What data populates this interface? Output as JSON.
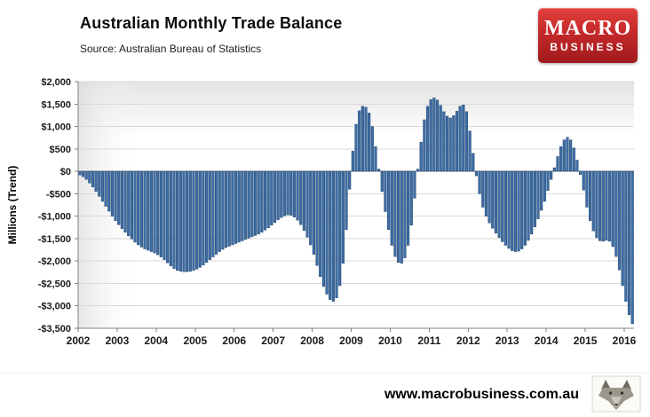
{
  "header": {
    "title": "Australian Monthly Trade Balance",
    "source": "Source: Australian Bureau of Statistics"
  },
  "logo": {
    "line1": "MACRO",
    "line2": "BUSINESS",
    "color_top": "#e2403b",
    "color_bottom": "#a01b1e"
  },
  "footer": {
    "url": "www.macrobusiness.com.au"
  },
  "chart_data": {
    "type": "bar",
    "title": "Australian Monthly Trade Balance",
    "ylabel": "Millions (Trend)",
    "ylim": [
      -3500,
      2000
    ],
    "ytick_step": 500,
    "ytick_labels": [
      "$2,000",
      "$1,500",
      "$1,000",
      "$500",
      "$0",
      "-$500",
      "-$1,000",
      "-$1,500",
      "-$2,000",
      "-$2,500",
      "-$3,000",
      "-$3,500"
    ],
    "x_year_labels": [
      "2002",
      "2003",
      "2004",
      "2005",
      "2006",
      "2007",
      "2008",
      "2009",
      "2010",
      "2011",
      "2012",
      "2013",
      "2014",
      "2015",
      "2016"
    ],
    "frequency": "monthly",
    "start_month": "2002-01",
    "grid": true,
    "legend": "none",
    "bar_color": "#3d6da6",
    "bar_edge": "#1f4369",
    "gridline_color": "#d9d9d9",
    "axis_color": "#808080",
    "values": [
      -80,
      -120,
      -180,
      -260,
      -350,
      -450,
      -560,
      -670,
      -780,
      -890,
      -1000,
      -1100,
      -1190,
      -1280,
      -1360,
      -1440,
      -1510,
      -1580,
      -1640,
      -1690,
      -1730,
      -1760,
      -1790,
      -1820,
      -1860,
      -1910,
      -1970,
      -2040,
      -2110,
      -2170,
      -2210,
      -2230,
      -2240,
      -2240,
      -2230,
      -2210,
      -2180,
      -2140,
      -2090,
      -2030,
      -1970,
      -1910,
      -1850,
      -1790,
      -1740,
      -1700,
      -1670,
      -1640,
      -1610,
      -1580,
      -1550,
      -1520,
      -1490,
      -1460,
      -1430,
      -1400,
      -1360,
      -1310,
      -1260,
      -1200,
      -1140,
      -1080,
      -1030,
      -990,
      -970,
      -980,
      -1020,
      -1090,
      -1190,
      -1320,
      -1470,
      -1640,
      -1850,
      -2100,
      -2350,
      -2570,
      -2740,
      -2860,
      -2900,
      -2820,
      -2550,
      -2050,
      -1300,
      -400,
      450,
      1050,
      1350,
      1450,
      1430,
      1300,
      1000,
      550,
      50,
      -450,
      -900,
      -1300,
      -1650,
      -1900,
      -2030,
      -2050,
      -1930,
      -1650,
      -1200,
      -600,
      50,
      650,
      1150,
      1450,
      1600,
      1640,
      1590,
      1470,
      1330,
      1230,
      1190,
      1240,
      1340,
      1450,
      1480,
      1330,
      900,
      400,
      -100,
      -500,
      -800,
      -1000,
      -1150,
      -1270,
      -1380,
      -1480,
      -1570,
      -1650,
      -1720,
      -1770,
      -1790,
      -1780,
      -1730,
      -1650,
      -1540,
      -1400,
      -1240,
      -1060,
      -870,
      -670,
      -430,
      -180,
      80,
      330,
      550,
      700,
      760,
      700,
      520,
      250,
      -70,
      -420,
      -800,
      -1100,
      -1330,
      -1480,
      -1550,
      -1560,
      -1540,
      -1560,
      -1680,
      -1900,
      -2200,
      -2550,
      -2900,
      -3200,
      -3400
    ]
  }
}
